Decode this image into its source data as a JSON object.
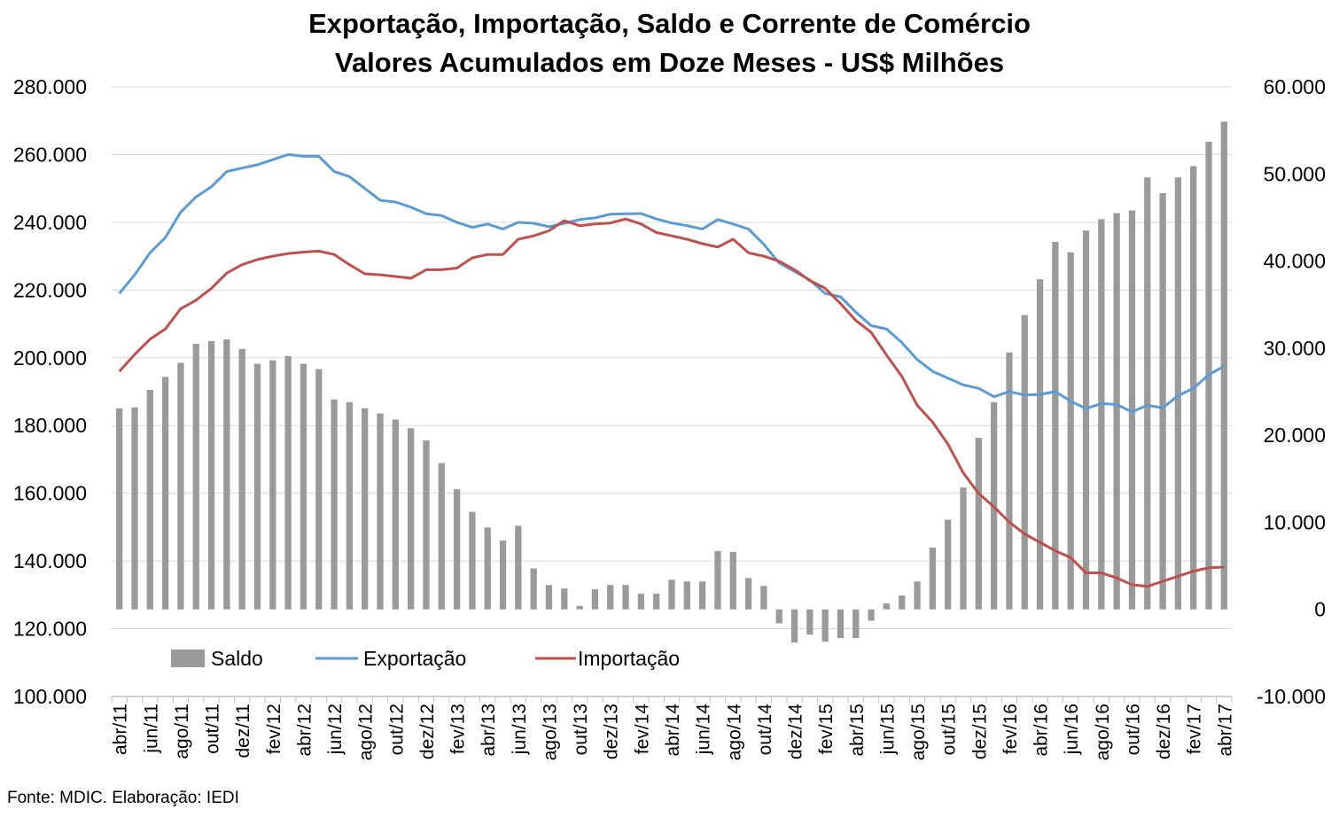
{
  "source_note": "Fonte: MDIC. Elaboração: IEDI",
  "chart_data": {
    "type": "bar",
    "title": "Exportação, Importação, Saldo e Corrente de Comércio",
    "subtitle": "Valores Acumulados em Doze Meses - US$ Milhões",
    "xlabel": "",
    "ylabel": "",
    "grid": true,
    "legend_position": "bottom-left",
    "left_axis": {
      "min": 100000,
      "max": 280000,
      "step": 20000,
      "tick_labels": [
        "100.000",
        "120.000",
        "140.000",
        "160.000",
        "180.000",
        "200.000",
        "220.000",
        "240.000",
        "260.000",
        "280.000"
      ]
    },
    "right_axis": {
      "min": -10000,
      "max": 60000,
      "step": 10000,
      "tick_labels": [
        "-10.000",
        "0",
        "10.000",
        "20.000",
        "30.000",
        "40.000",
        "50.000",
        "60.000"
      ]
    },
    "categories": [
      "abr/11",
      "mai/11",
      "jun/11",
      "jul/11",
      "ago/11",
      "set/11",
      "out/11",
      "nov/11",
      "dez/11",
      "jan/12",
      "fev/12",
      "mar/12",
      "abr/12",
      "mai/12",
      "jun/12",
      "jul/12",
      "ago/12",
      "set/12",
      "out/12",
      "nov/12",
      "dez/12",
      "jan/13",
      "fev/13",
      "mar/13",
      "abr/13",
      "mai/13",
      "jun/13",
      "jul/13",
      "ago/13",
      "set/13",
      "out/13",
      "nov/13",
      "dez/13",
      "jan/14",
      "fev/14",
      "mar/14",
      "abr/14",
      "mai/14",
      "jun/14",
      "jul/14",
      "ago/14",
      "set/14",
      "out/14",
      "nov/14",
      "dez/14",
      "jan/15",
      "fev/15",
      "mar/15",
      "abr/15",
      "mai/15",
      "jun/15",
      "jul/15",
      "ago/15",
      "set/15",
      "out/15",
      "nov/15",
      "dez/15",
      "jan/16",
      "fev/16",
      "mar/16",
      "abr/16",
      "mai/16",
      "jun/16",
      "jul/16",
      "ago/16",
      "set/16",
      "out/16",
      "nov/16",
      "dez/16",
      "jan/17",
      "fev/17",
      "mar/17",
      "abr/17"
    ],
    "tick_labels": [
      "abr/11",
      "jun/11",
      "ago/11",
      "out/11",
      "dez/11",
      "fev/12",
      "abr/12",
      "jun/12",
      "ago/12",
      "out/12",
      "dez/12",
      "fev/13",
      "abr/13",
      "jun/13",
      "ago/13",
      "out/13",
      "dez/13",
      "fev/14",
      "abr/14",
      "jun/14",
      "ago/14",
      "out/14",
      "dez/14",
      "fev/15",
      "abr/15",
      "jun/15",
      "ago/15",
      "out/15",
      "dez/15",
      "fev/16",
      "abr/16",
      "jun/16",
      "ago/16",
      "out/16",
      "dez/16",
      "fev/17",
      "abr/17"
    ],
    "series": [
      {
        "name": "Saldo",
        "kind": "bar",
        "axis": "right",
        "color": "#9a9a9a",
        "values": [
          23100,
          23200,
          25200,
          26700,
          28300,
          30500,
          30800,
          31000,
          29900,
          28200,
          28600,
          29100,
          28200,
          27600,
          24100,
          23800,
          23100,
          22500,
          21800,
          20800,
          19400,
          16800,
          13800,
          11200,
          9400,
          7900,
          9600,
          4700,
          2800,
          2400,
          400,
          2300,
          2800,
          2800,
          1800,
          1800,
          3400,
          3200,
          3200,
          6700,
          6600,
          3600,
          2700,
          -1600,
          -3800,
          -2900,
          -3700,
          -3300,
          -3300,
          -1300,
          700,
          1600,
          3200,
          7100,
          10300,
          14000,
          19700,
          23800,
          29500,
          33800,
          37900,
          42200,
          41000,
          43500,
          44800,
          45500,
          45800,
          49600,
          47800,
          49600,
          50900,
          53700,
          56000
        ]
      },
      {
        "name": "Exportação",
        "kind": "line",
        "axis": "left",
        "color": "#5b9bd5",
        "values": [
          219000,
          224500,
          231000,
          235500,
          243000,
          247500,
          250500,
          255000,
          256000,
          257000,
          258500,
          260000,
          259500,
          259500,
          255000,
          253500,
          250000,
          246500,
          246000,
          244500,
          242500,
          242000,
          240000,
          238500,
          239500,
          238000,
          240000,
          239700,
          238700,
          239700,
          240800,
          241300,
          242400,
          242500,
          242600,
          241000,
          239800,
          239000,
          238000,
          240800,
          239500,
          238000,
          233500,
          228000,
          225500,
          223000,
          219000,
          218000,
          213500,
          209500,
          208500,
          204500,
          199500,
          196000,
          194000,
          192000,
          191000,
          188500,
          190000,
          189000,
          189200,
          190000,
          187200,
          185000,
          186500,
          186200,
          184000,
          186000,
          185200,
          188800,
          191000,
          195000,
          197500
        ]
      },
      {
        "name": "Importação",
        "kind": "line",
        "axis": "left",
        "color": "#c0504d",
        "values": [
          196000,
          201000,
          205500,
          208500,
          214500,
          217000,
          220500,
          225000,
          227500,
          229000,
          230000,
          230800,
          231200,
          231500,
          230500,
          227500,
          224800,
          224500,
          224000,
          223500,
          226000,
          226000,
          226500,
          229500,
          230500,
          230500,
          235000,
          236000,
          237500,
          240500,
          239000,
          239500,
          239800,
          241000,
          239500,
          237000,
          236000,
          235000,
          233700,
          232700,
          235000,
          231000,
          230000,
          228500,
          226000,
          222800,
          220500,
          216000,
          211000,
          207500,
          200800,
          194500,
          186000,
          181000,
          174500,
          166000,
          160000,
          156000,
          151500,
          148000,
          145500,
          143000,
          141000,
          136500,
          136500,
          135000,
          133000,
          132500,
          134000,
          135500,
          137000,
          138000,
          138200
        ]
      }
    ]
  }
}
